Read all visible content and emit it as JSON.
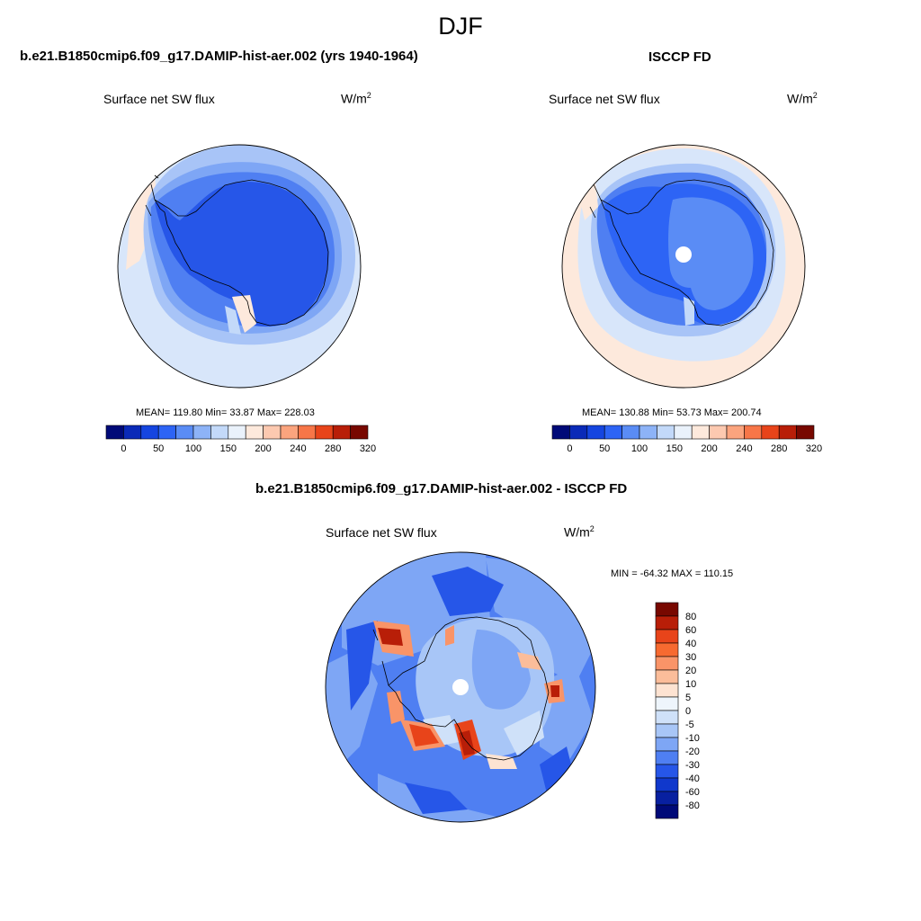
{
  "page": {
    "title": "DJF"
  },
  "panels": [
    {
      "title": "b.e21.B1850cmip6.f09_g17.DAMIP-hist-aer.002 (yrs 1940-1964)",
      "variable": "Surface net SW flux",
      "units_base": "W/m",
      "units_exp": "2",
      "stats": "MEAN= 119.80  Min=  33.87  Max= 228.03"
    },
    {
      "title": "ISCCP FD",
      "variable": "Surface net SW flux",
      "units_base": "W/m",
      "units_exp": "2",
      "stats": "MEAN= 130.88  Min=  53.73  Max= 200.74"
    },
    {
      "title": "b.e21.B1850cmip6.f09_g17.DAMIP-hist-aer.002 - ISCCP FD",
      "variable": "Surface net SW flux",
      "units_base": "W/m",
      "units_exp": "2",
      "stats": "MIN = -64.32 MAX = 110.15"
    }
  ],
  "chart_data": [
    {
      "type": "heatmap",
      "projection": "south-polar-stereographic",
      "title": "b.e21.B1850cmip6.f09_g17.DAMIP-hist-aer.002 (yrs 1940-1964)",
      "variable": "Surface net SW flux",
      "units": "W/m2",
      "mean": 119.8,
      "min": 33.87,
      "max": 228.03,
      "colorbar": {
        "orientation": "horizontal",
        "levels": [
          0,
          25,
          50,
          75,
          100,
          125,
          150,
          175,
          200,
          220,
          240,
          260,
          280,
          300,
          320
        ],
        "tick_labels": [
          "0",
          "50",
          "100",
          "150",
          "200",
          "240",
          "280",
          "320"
        ],
        "colors": [
          "#000a78",
          "#0a2ab8",
          "#1545e0",
          "#2d64f5",
          "#5a8cf5",
          "#8db3f7",
          "#c3d9f9",
          "#eaf2fb",
          "#fde9dc",
          "#fcc9b0",
          "#fba47e",
          "#f77648",
          "#e8441a",
          "#b81e08",
          "#780800"
        ]
      }
    },
    {
      "type": "heatmap",
      "projection": "south-polar-stereographic",
      "title": "ISCCP FD",
      "variable": "Surface net SW flux",
      "units": "W/m2",
      "mean": 130.88,
      "min": 53.73,
      "max": 200.74,
      "colorbar": {
        "orientation": "horizontal",
        "levels": [
          0,
          25,
          50,
          75,
          100,
          125,
          150,
          175,
          200,
          220,
          240,
          260,
          280,
          300,
          320
        ],
        "tick_labels": [
          "0",
          "50",
          "100",
          "150",
          "200",
          "240",
          "280",
          "320"
        ],
        "colors": [
          "#000a78",
          "#0a2ab8",
          "#1545e0",
          "#2d64f5",
          "#5a8cf5",
          "#8db3f7",
          "#c3d9f9",
          "#eaf2fb",
          "#fde9dc",
          "#fcc9b0",
          "#fba47e",
          "#f77648",
          "#e8441a",
          "#b81e08",
          "#780800"
        ]
      }
    },
    {
      "type": "heatmap",
      "projection": "south-polar-stereographic",
      "title": "b.e21.B1850cmip6.f09_g17.DAMIP-hist-aer.002 - ISCCP FD",
      "variable": "Surface net SW flux",
      "units": "W/m2",
      "min": -64.32,
      "max": 110.15,
      "colorbar": {
        "orientation": "vertical",
        "tick_labels": [
          "80",
          "60",
          "40",
          "30",
          "20",
          "10",
          "5",
          "0",
          "-5",
          "-10",
          "-20",
          "-30",
          "-40",
          "-60",
          "-80"
        ],
        "colors": [
          "#780800",
          "#b81e08",
          "#e8441a",
          "#f76a30",
          "#f99468",
          "#fbbd9a",
          "#fde3d2",
          "#eef5fc",
          "#cfe1f9",
          "#a8c6f7",
          "#7ea6f5",
          "#4f7ff2",
          "#2656e8",
          "#1038cc",
          "#0820a0",
          "#000a78"
        ]
      }
    }
  ]
}
